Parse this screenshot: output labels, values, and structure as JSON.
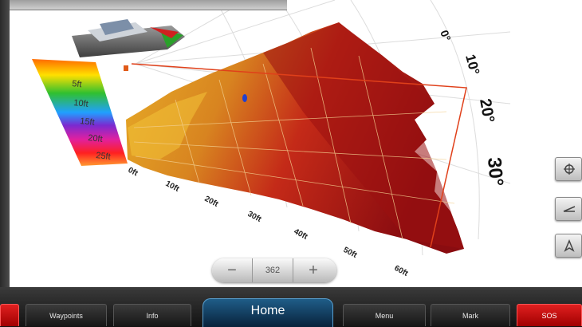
{
  "scale": {
    "depth_labels": [
      "5ft",
      "10ft",
      "15ft",
      "20ft",
      "25ft"
    ]
  },
  "angle_labels": [
    "0°",
    "10°",
    "20°",
    "30°"
  ],
  "range_labels": [
    "0ft",
    "10ft",
    "20ft",
    "30ft",
    "40ft",
    "50ft",
    "60ft"
  ],
  "zoom": {
    "minus": "−",
    "value": "362",
    "plus": "+"
  },
  "bottom_bar": {
    "waypoints": "Waypoints",
    "info": "Info",
    "home": "Home",
    "menu": "Menu",
    "mark": "Mark",
    "sos": "SOS"
  },
  "side_buttons": [
    "crosshair-icon",
    "sonar-view-icon",
    "navigate-icon"
  ],
  "colors": {
    "sos_red": "#d81818",
    "home_blue": "#1f5d88",
    "range_outline": "#e0401a"
  }
}
